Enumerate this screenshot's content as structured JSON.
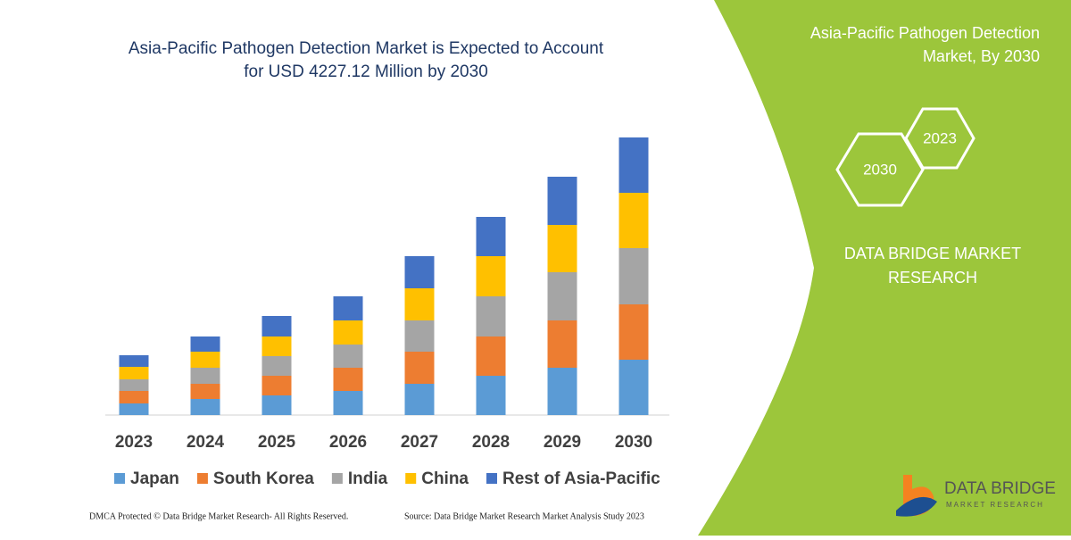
{
  "chart_data": {
    "type": "stacked-bar",
    "title": [
      "Asia-Pacific Pathogen Detection Market is Expected to Account",
      "for USD 4227.12 Million by 2030"
    ],
    "categories": [
      "2023",
      "2024",
      "2025",
      "2026",
      "2027",
      "2028",
      "2029",
      "2030"
    ],
    "series": [
      {
        "name": "Japan",
        "color": "#5b9bd5",
        "values": [
          13,
          18,
          22,
          27,
          35,
          44,
          53,
          62
        ]
      },
      {
        "name": "South Korea",
        "color": "#ed7d31",
        "values": [
          14,
          17,
          22,
          26,
          36,
          44,
          53,
          62
        ]
      },
      {
        "name": "India",
        "color": "#a5a5a5",
        "values": [
          13,
          18,
          22,
          26,
          35,
          45,
          54,
          63
        ]
      },
      {
        "name": "China",
        "color": "#ffc000",
        "values": [
          14,
          18,
          22,
          27,
          36,
          45,
          53,
          62
        ]
      },
      {
        "name": "Rest of Asia-Pacific",
        "color": "#4472c4",
        "values": [
          13,
          17,
          23,
          27,
          36,
          44,
          54,
          62
        ]
      }
    ],
    "ylim": [
      0,
      320
    ],
    "legend": "bottom"
  },
  "panel": {
    "title": [
      "Asia-Pacific Pathogen Detection",
      "Market, By 2030"
    ],
    "hexagons": [
      "2023",
      "2030"
    ],
    "brand": [
      "DATA BRIDGE MARKET",
      "RESEARCH"
    ]
  },
  "footer": {
    "copyright": "DMCA Protected © Data Bridge Market Research-  All Rights Reserved.",
    "source": "Source: Data Bridge Market Research  Market Analysis Study 2023"
  },
  "logo": {
    "name": "DATA BRIDGE",
    "tagline": "MARKET RESEARCH"
  }
}
